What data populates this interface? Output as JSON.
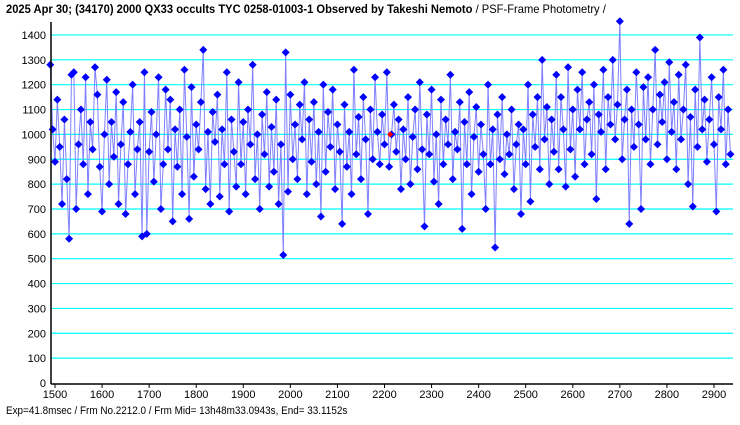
{
  "title": {
    "main": "2025 Apr 30; (34170) 2000 QX33 occults TYC 0258-01003-1 Observed by Takeshi Nemoto",
    "suffix": " / PSF-Frame Photometry /"
  },
  "footer": "Exp=41.8msec / Frm No.2212.0 / Frm Mid= 13h48m33.0943s,  End= 33.1152s",
  "colors": {
    "grid": "#00ffff",
    "point": "#0000ff",
    "line": "#8080ff",
    "marker": "#ff0000"
  },
  "chart_data": {
    "type": "line",
    "title": "2025 Apr 30; (34170) 2000 QX33 occults TYC 0258-01003-1 Observed by Takeshi Nemoto / PSF-Frame Photometry /",
    "xlabel": "",
    "ylabel": "",
    "xlim": [
      1490,
      2940
    ],
    "ylim": [
      0,
      1400
    ],
    "xticks": [
      1500,
      1600,
      1700,
      1800,
      1900,
      2000,
      2100,
      2200,
      2300,
      2400,
      2500,
      2600,
      2700,
      2800,
      2900
    ],
    "yticks": [
      0,
      100,
      200,
      300,
      400,
      500,
      600,
      700,
      800,
      900,
      1000,
      1100,
      1200,
      1300,
      1400
    ],
    "grid": true,
    "legend": "none",
    "x_start": 1490,
    "x_step": 5,
    "values": [
      1280,
      1020,
      890,
      1140,
      950,
      720,
      1060,
      820,
      580,
      1240,
      1250,
      700,
      960,
      1100,
      880,
      1230,
      760,
      1050,
      940,
      1270,
      1160,
      870,
      690,
      1000,
      1220,
      800,
      1050,
      910,
      1170,
      720,
      960,
      1130,
      680,
      880,
      1010,
      1200,
      760,
      940,
      1050,
      590,
      1250,
      600,
      930,
      1090,
      810,
      1000,
      1230,
      700,
      880,
      1180,
      940,
      1140,
      650,
      1020,
      870,
      1100,
      760,
      1260,
      990,
      660,
      1190,
      830,
      1040,
      940,
      1130,
      1340,
      780,
      1010,
      720,
      1090,
      970,
      1160,
      750,
      1020,
      880,
      1250,
      690,
      1060,
      930,
      790,
      1210,
      880,
      1050,
      760,
      1100,
      960,
      1280,
      820,
      1000,
      700,
      1080,
      920,
      1170,
      790,
      1030,
      850,
      1140,
      720,
      960,
      515,
      1330,
      770,
      1160,
      900,
      1040,
      820,
      1120,
      980,
      1210,
      760,
      1060,
      890,
      1130,
      800,
      1010,
      670,
      1200,
      850,
      1090,
      950,
      1180,
      780,
      1040,
      930,
      640,
      1120,
      870,
      1010,
      760,
      1260,
      920,
      1070,
      820,
      1150,
      980,
      680,
      1100,
      900,
      1230,
      1010,
      880,
      1080,
      960,
      1250,
      870,
      1000,
      1120,
      930,
      1060,
      780,
      1020,
      900,
      1150,
      800,
      990,
      1100,
      860,
      1210,
      940,
      630,
      1080,
      920,
      1180,
      810,
      1000,
      720,
      1140,
      880,
      1060,
      960,
      1240,
      820,
      1010,
      940,
      1130,
      620,
      1050,
      880,
      1170,
      760,
      990,
      1110,
      850,
      1040,
      920,
      700,
      1200,
      880,
      1020,
      545,
      1080,
      900,
      1150,
      840,
      1000,
      920,
      1100,
      780,
      960,
      1040,
      680,
      1020,
      880,
      1200,
      730,
      1080,
      950,
      1150,
      860,
      1300,
      980,
      1110,
      800,
      1060,
      930,
      1240,
      860,
      1150,
      1020,
      790,
      1270,
      940,
      1100,
      830,
      1180,
      1020,
      1250,
      880,
      1060,
      1130,
      920,
      1200,
      740,
      1080,
      1010,
      1260,
      860,
      1150,
      1040,
      1300,
      980,
      1120,
      1455,
      900,
      1060,
      1180,
      640,
      1100,
      950,
      1250,
      1040,
      700,
      1190,
      980,
      1230,
      880,
      1100,
      1340,
      960,
      1160,
      1050,
      1210,
      900,
      1290,
      1010,
      1130,
      860,
      1240,
      980,
      1100,
      1280,
      800,
      1070,
      710,
      1180,
      950,
      1390,
      1020,
      1140,
      890,
      1060,
      1230,
      960,
      690,
      1150,
      1020,
      1260,
      880,
      1100,
      920
    ],
    "marker": {
      "x": 2212,
      "y": 1000
    }
  }
}
